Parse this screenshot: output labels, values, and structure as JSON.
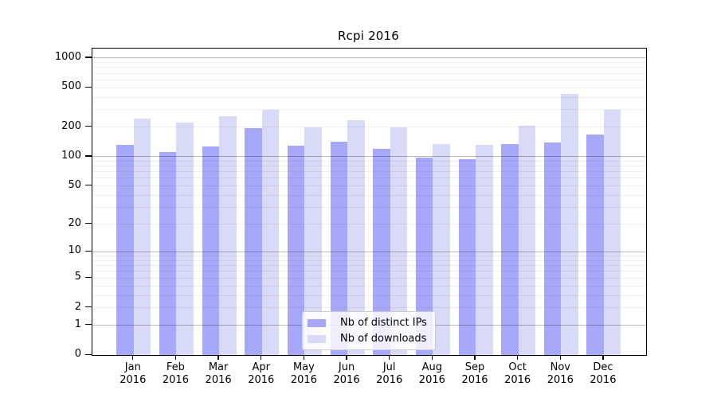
{
  "chart_data": {
    "type": "bar",
    "title": "Rcpi 2016",
    "months": [
      "Jan",
      "Feb",
      "Mar",
      "Apr",
      "May",
      "Jun",
      "Jul",
      "Aug",
      "Sep",
      "Oct",
      "Nov",
      "Dec"
    ],
    "year": "2016",
    "series": [
      {
        "name": "Nb of distinct IPs",
        "color": "#a8a8fa",
        "values": [
          132,
          112,
          126,
          195,
          130,
          143,
          121,
          98,
          94,
          135,
          139,
          169
        ]
      },
      {
        "name": "Nb of downloads",
        "color": "#d9d9f8",
        "values": [
          245,
          220,
          259,
          300,
          200,
          236,
          200,
          133,
          132,
          204,
          431,
          301
        ]
      }
    ],
    "xlabel": "",
    "ylabel": "",
    "yscale": "log1p",
    "ymax": 1245,
    "ymin": 0,
    "yticks": [
      1000,
      500,
      200,
      100,
      50,
      20,
      10,
      5,
      2,
      1,
      0
    ],
    "grid": {
      "on": true,
      "major_values": [
        1,
        10,
        100,
        1000
      ],
      "minor_values": [
        2,
        3,
        4,
        5,
        6,
        7,
        8,
        9,
        20,
        30,
        40,
        50,
        60,
        70,
        80,
        90,
        200,
        300,
        400,
        500,
        600,
        700,
        800,
        900
      ]
    },
    "legend": {
      "position": "lower-center"
    }
  }
}
